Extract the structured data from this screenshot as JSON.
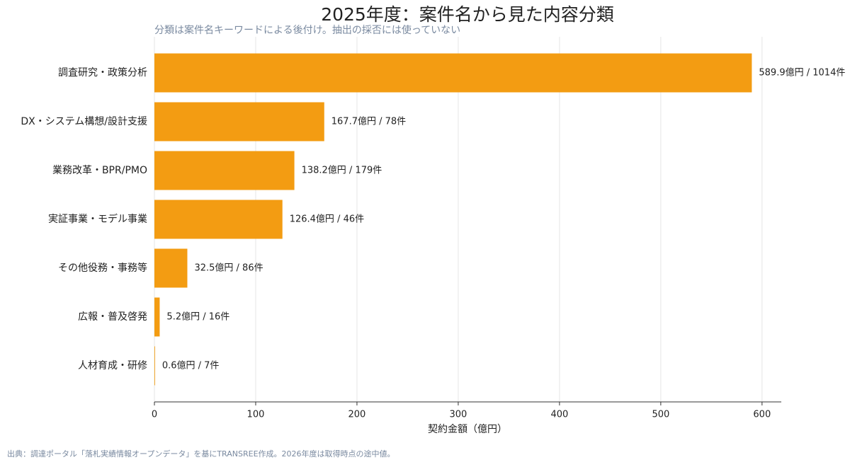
{
  "chart_data": {
    "type": "barh",
    "title": "2025年度：案件名から見た内容分類",
    "subtitle": "分類は案件名キーワードによる後付け。抽出の採否には使っていない",
    "categories": [
      "調査研究・政策分析",
      "DX・システム構想/設計支援",
      "業務改革・BPR/PMO",
      "実証事業・モデル事業",
      "その他役務・事務等",
      "広報・普及啓発",
      "人材育成・研修"
    ],
    "values": [
      589.9,
      167.7,
      138.2,
      126.4,
      32.5,
      5.2,
      0.6
    ],
    "value_labels": [
      "589.9億円 / 1014件",
      "167.7億円 / 78件",
      "138.2億円 / 179件",
      "126.4億円 / 46件",
      "32.5億円 / 86件",
      "5.2億円 / 16件",
      "0.6億円 / 7件"
    ],
    "color": "#f39c12",
    "xlabel": "契約金額（億円）",
    "xlim": [
      0,
      619
    ],
    "xticks": [
      0,
      100,
      200,
      300,
      400,
      500,
      600
    ],
    "grid": true,
    "source": "出典：調達ポータル「落札実績情報オープンデータ」を基にTRANSREE作成。2026年度は取得時点の途中値。"
  }
}
